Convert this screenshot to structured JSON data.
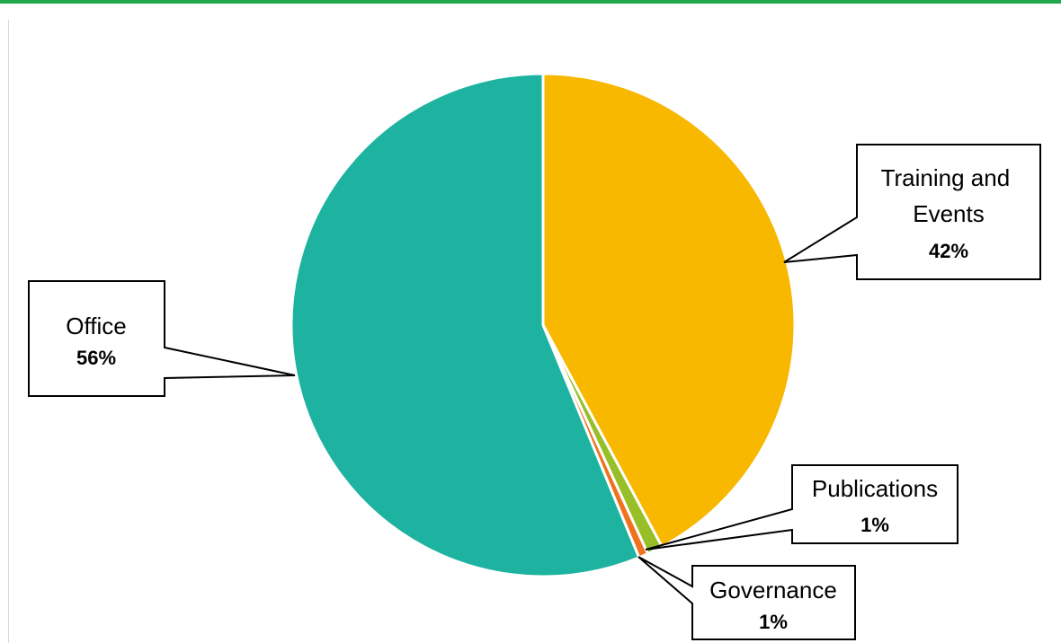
{
  "chart_data": {
    "type": "pie",
    "title": "",
    "slices": [
      {
        "label": "Training and Events",
        "percent_label": "42%",
        "value": 42,
        "color": "#F8B800"
      },
      {
        "label": "Publications",
        "percent_label": "1%",
        "value": 1,
        "color": "#98BF27"
      },
      {
        "label": "Governance",
        "percent_label": "1%",
        "value": 0.6,
        "color": "#F0711E"
      },
      {
        "label": "Office",
        "percent_label": "56%",
        "value": 56,
        "color": "#1DB3A0"
      }
    ],
    "start_angle": "12 o'clock",
    "direction": "clockwise"
  },
  "theme": {
    "top_rule_color": "#22A74B"
  }
}
